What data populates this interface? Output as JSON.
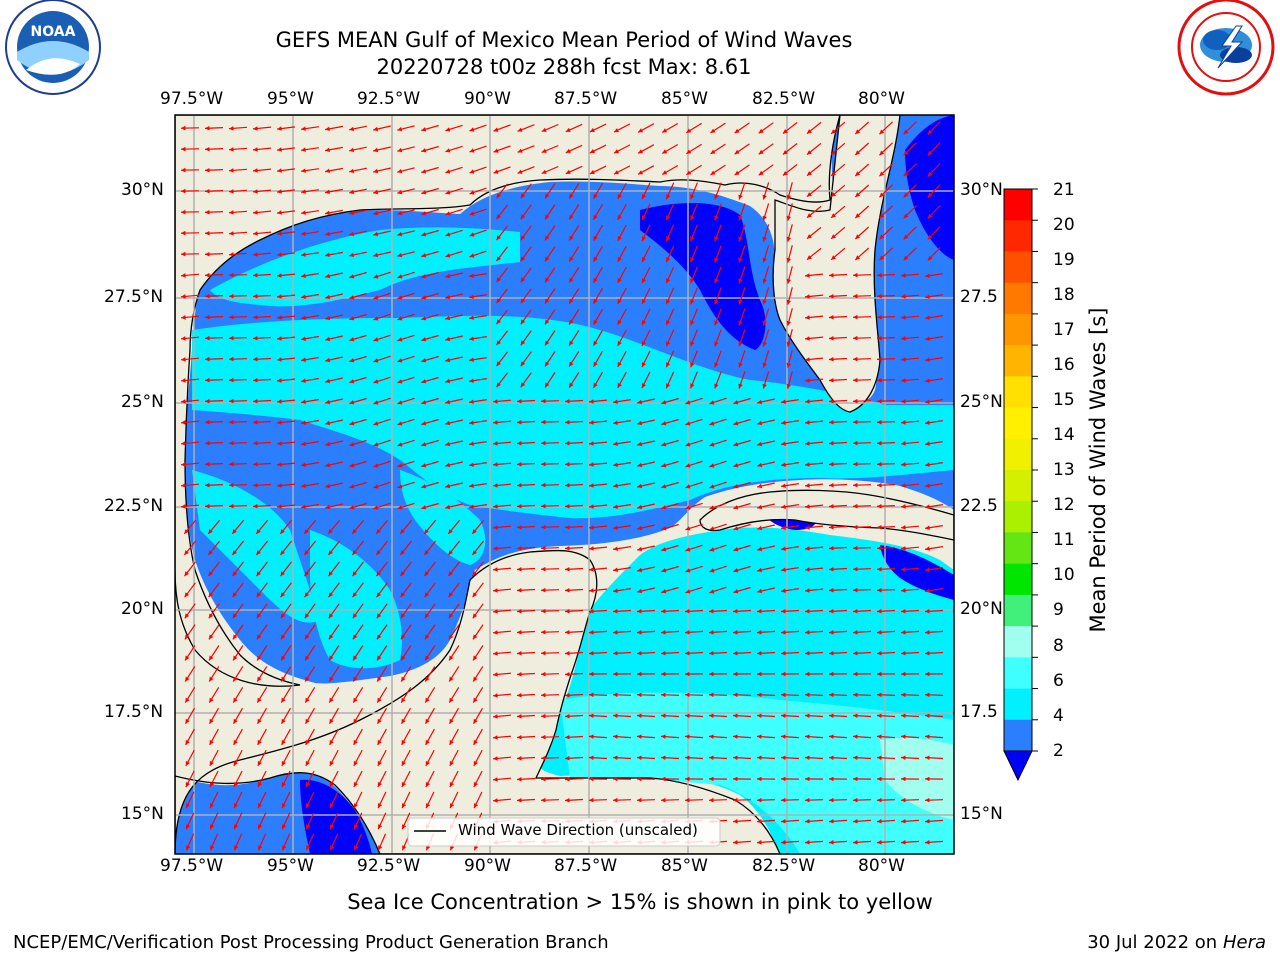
{
  "header": {
    "title_line1": "GEFS MEAN Gulf of Mexico Mean Period of Wind Waves",
    "title_line2": "20220728 t00z 288h fcst   Max: 8.61"
  },
  "logos": {
    "left": {
      "text": "NOAA",
      "ring_text": "NATIONAL OCEANIC AND ATMOSPHERIC ADMINISTRATION · U.S. DEPARTMENT OF COMMERCE"
    },
    "right": {
      "ring_text": "NATIONAL WEATHER SERVICE"
    }
  },
  "map": {
    "lon_labels": [
      "97.5°W",
      "95°W",
      "92.5°W",
      "90°W",
      "87.5°W",
      "85°W",
      "82.5°W",
      "80°W"
    ],
    "lat_labels_left": [
      "30°N",
      "27.5°N",
      "25°N",
      "22.5°N",
      "20°N",
      "17.5°N",
      "15°N"
    ],
    "lat_labels_right": [
      "30°N",
      "27.5",
      "25°N",
      "22.5",
      "20°N",
      "17.5",
      "15°N"
    ],
    "legend_label": "Wind Wave Direction (unscaled)",
    "colors": {
      "land": "#efedde",
      "ocean_2_4": "#2b7fff",
      "ocean_4_6": "#00f0ff",
      "ocean_6_8": "#40ffff",
      "ocean_lt2": "#0000ff",
      "arrow": "#ff0000",
      "grid": "#b0b0b0"
    }
  },
  "colorbar": {
    "label": "Mean Period of Wind Waves [s]",
    "ticks": [
      "21",
      "20",
      "19",
      "18",
      "17",
      "16",
      "15",
      "14",
      "13",
      "12",
      "11",
      "10",
      "9",
      "8",
      "6",
      "4",
      "2"
    ],
    "colors": [
      "#ff0000",
      "#ff2800",
      "#ff5000",
      "#ff7800",
      "#ff9600",
      "#ffb400",
      "#ffe000",
      "#fff000",
      "#f0f000",
      "#d2f000",
      "#aaf000",
      "#64e614",
      "#00e600",
      "#40f07a",
      "#a0ffee",
      "#40ffff",
      "#00f0ff",
      "#2b7fff"
    ],
    "extend_color": "#0000ff"
  },
  "footer": {
    "note": "Sea Ice Concentration > 15% is shown in pink to yellow",
    "left": "NCEP/EMC/Verification Post Processing Product Generation Branch",
    "right_date": "30 Jul 2022 on ",
    "right_host": "Hera"
  }
}
